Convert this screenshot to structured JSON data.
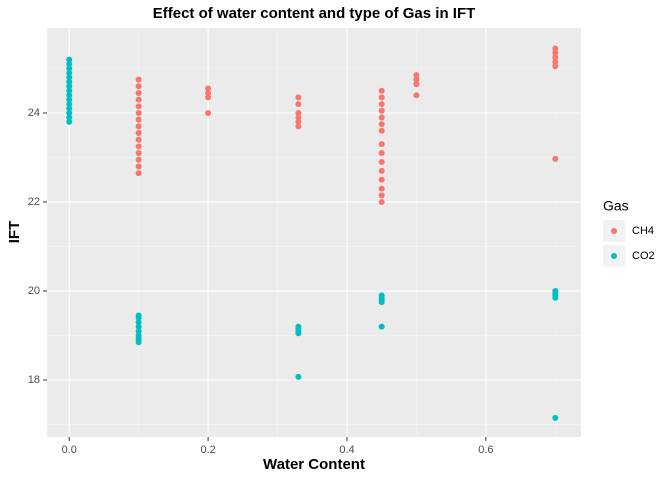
{
  "chart_data": {
    "type": "scatter",
    "title": "Effect of water content and type of Gas in IFT",
    "x_label": "Water Content",
    "y_label": "IFT",
    "xlim": [
      -0.032,
      0.737
    ],
    "ylim": [
      16.72,
      25.91
    ],
    "xticks": [
      {
        "value": 0,
        "label": "0.0"
      },
      {
        "value": 0.2,
        "label": "0.2"
      },
      {
        "value": 0.4,
        "label": "0.4"
      },
      {
        "value": 0.6,
        "label": "0.6"
      }
    ],
    "yticks": [
      18,
      20,
      22,
      24
    ],
    "grid": true,
    "legend_title": "Gas",
    "legend_position": "right",
    "series": [
      {
        "name": "CH4",
        "color": "#F8766D",
        "x": [
          0.1,
          0.1,
          0.1,
          0.1,
          0.1,
          0.1,
          0.1,
          0.1,
          0.1,
          0.1,
          0.1,
          0.1,
          0.1,
          0.1,
          0.1,
          0.2,
          0.2,
          0.2,
          0.2,
          0.33,
          0.33,
          0.33,
          0.33,
          0.33,
          0.33,
          0.45,
          0.45,
          0.45,
          0.45,
          0.45,
          0.45,
          0.45,
          0.45,
          0.45,
          0.45,
          0.45,
          0.45,
          0.45,
          0.45,
          0.45,
          0.5,
          0.5,
          0.5,
          0.5,
          0.7,
          0.7,
          0.7,
          0.7,
          0.7,
          0.7
        ],
        "values": [
          24.75,
          24.6,
          24.45,
          24.3,
          24.15,
          24.0,
          23.85,
          23.7,
          23.55,
          23.4,
          23.25,
          23.1,
          22.95,
          22.8,
          22.65,
          24.55,
          24.45,
          24.35,
          24.0,
          24.35,
          24.2,
          24.0,
          23.9,
          23.8,
          23.7,
          24.5,
          24.35,
          24.2,
          24.05,
          23.9,
          23.75,
          23.6,
          23.3,
          23.1,
          22.9,
          22.7,
          22.5,
          22.3,
          22.15,
          22.0,
          24.85,
          24.75,
          24.65,
          24.4,
          25.45,
          25.35,
          25.25,
          25.15,
          25.05,
          22.97
        ]
      },
      {
        "name": "CO2",
        "color": "#00BFC4",
        "x": [
          0,
          0,
          0,
          0,
          0,
          0,
          0,
          0,
          0,
          0,
          0,
          0,
          0,
          0,
          0,
          0.1,
          0.1,
          0.1,
          0.1,
          0.1,
          0.1,
          0.1,
          0.1,
          0.1,
          0.33,
          0.33,
          0.33,
          0.33,
          0.33,
          0.45,
          0.45,
          0.45,
          0.45,
          0.45,
          0.7,
          0.7,
          0.7,
          0.7,
          0.7
        ],
        "values": [
          25.2,
          25.1,
          25.0,
          24.9,
          24.8,
          24.7,
          24.6,
          24.5,
          24.4,
          24.3,
          24.2,
          24.1,
          24.0,
          23.9,
          23.8,
          19.45,
          19.4,
          19.3,
          19.2,
          19.1,
          19.0,
          18.95,
          18.9,
          18.85,
          19.2,
          19.15,
          19.1,
          19.05,
          18.07,
          19.9,
          19.85,
          19.8,
          19.75,
          19.2,
          20.0,
          19.95,
          19.9,
          19.85,
          17.15
        ]
      }
    ]
  }
}
